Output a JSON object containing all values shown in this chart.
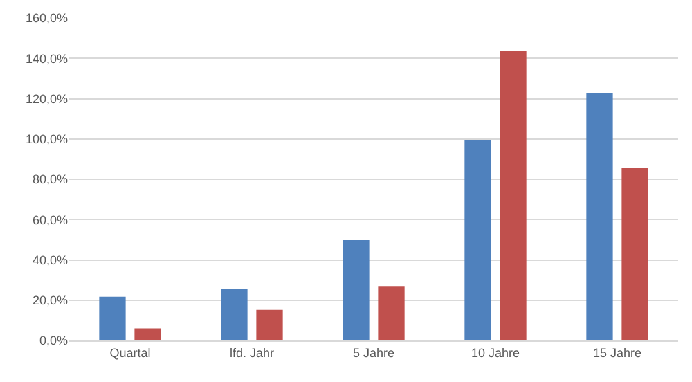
{
  "chart_data": {
    "type": "bar",
    "categories": [
      "Quartal",
      "lfd. Jahr",
      "5 Jahre",
      "10 Jahre",
      "15 Jahre"
    ],
    "series": [
      {
        "color": "#4f81bd",
        "values": [
          21.7,
          25.5,
          49.8,
          99.5,
          122.6
        ]
      },
      {
        "color": "#c0504d",
        "values": [
          6.0,
          15.2,
          26.7,
          143.8,
          85.5
        ]
      }
    ],
    "ylim": [
      0,
      160
    ],
    "yticks": [
      {
        "value": 0,
        "label": "0,0%"
      },
      {
        "value": 20,
        "label": "20,0%"
      },
      {
        "value": 40,
        "label": "40,0%"
      },
      {
        "value": 60,
        "label": "60,0%"
      },
      {
        "value": 80,
        "label": "80,0%"
      },
      {
        "value": 100,
        "label": "100,0%"
      },
      {
        "value": 120,
        "label": "120,0%"
      },
      {
        "value": 140,
        "label": "140,0%"
      },
      {
        "value": 160,
        "label": "160,0%"
      }
    ],
    "grid": "y"
  }
}
